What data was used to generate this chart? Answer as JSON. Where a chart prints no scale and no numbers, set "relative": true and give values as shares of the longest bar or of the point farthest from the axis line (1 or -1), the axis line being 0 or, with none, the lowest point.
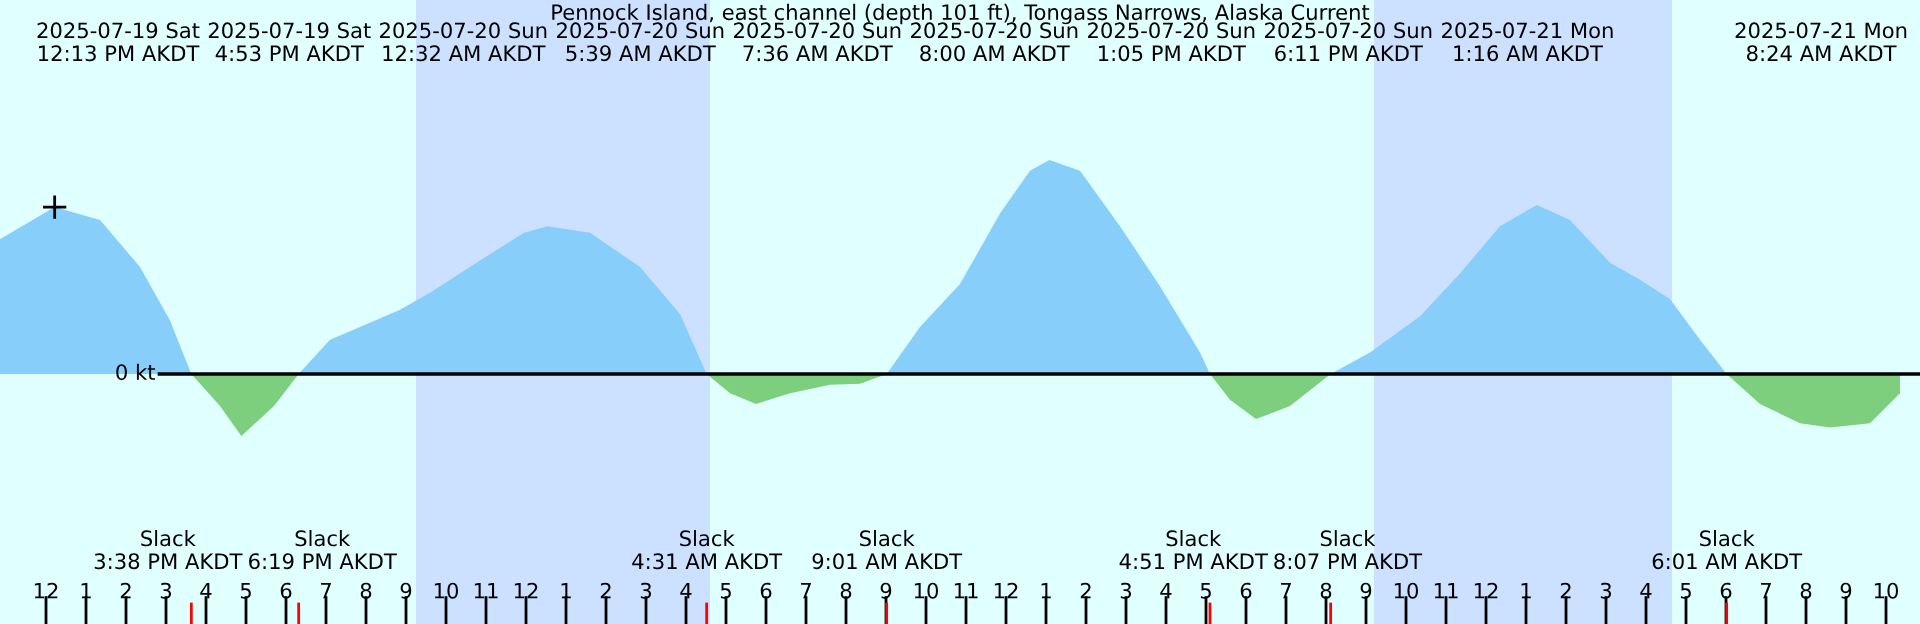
{
  "chart_data": {
    "type": "area",
    "title": "Pennock Island, east channel (depth 101 ft), Tongass Narrows, Alaska Current",
    "relative": true,
    "xlim": [
      "2025-07-19T10:51",
      "2025-07-21T10:51"
    ],
    "xticks": [
      {
        "value": "2025-07-19T12:00",
        "label": "12"
      },
      {
        "value": "2025-07-19T13:00",
        "label": "1"
      },
      {
        "value": "2025-07-19T14:00",
        "label": "2"
      },
      {
        "value": "2025-07-19T15:00",
        "label": "3"
      },
      {
        "value": "2025-07-19T16:00",
        "label": "4"
      },
      {
        "value": "2025-07-19T17:00",
        "label": "5"
      },
      {
        "value": "2025-07-19T18:00",
        "label": "6"
      },
      {
        "value": "2025-07-19T19:00",
        "label": "7"
      },
      {
        "value": "2025-07-19T20:00",
        "label": "8"
      },
      {
        "value": "2025-07-19T21:00",
        "label": "9"
      },
      {
        "value": "2025-07-19T22:00",
        "label": "10"
      },
      {
        "value": "2025-07-19T23:00",
        "label": "11"
      },
      {
        "value": "2025-07-20T00:00",
        "label": "12"
      },
      {
        "value": "2025-07-20T01:00",
        "label": "1"
      },
      {
        "value": "2025-07-20T02:00",
        "label": "2"
      },
      {
        "value": "2025-07-20T03:00",
        "label": "3"
      },
      {
        "value": "2025-07-20T04:00",
        "label": "4"
      },
      {
        "value": "2025-07-20T05:00",
        "label": "5"
      },
      {
        "value": "2025-07-20T06:00",
        "label": "6"
      },
      {
        "value": "2025-07-20T07:00",
        "label": "7"
      },
      {
        "value": "2025-07-20T08:00",
        "label": "8"
      },
      {
        "value": "2025-07-20T09:00",
        "label": "9"
      },
      {
        "value": "2025-07-20T10:00",
        "label": "10"
      },
      {
        "value": "2025-07-20T11:00",
        "label": "11"
      },
      {
        "value": "2025-07-20T12:00",
        "label": "12"
      },
      {
        "value": "2025-07-20T13:00",
        "label": "1"
      },
      {
        "value": "2025-07-20T14:00",
        "label": "2"
      },
      {
        "value": "2025-07-20T15:00",
        "label": "3"
      },
      {
        "value": "2025-07-20T16:00",
        "label": "4"
      },
      {
        "value": "2025-07-20T17:00",
        "label": "5"
      },
      {
        "value": "2025-07-20T18:00",
        "label": "6"
      },
      {
        "value": "2025-07-20T19:00",
        "label": "7"
      },
      {
        "value": "2025-07-20T20:00",
        "label": "8"
      },
      {
        "value": "2025-07-20T21:00",
        "label": "9"
      },
      {
        "value": "2025-07-20T22:00",
        "label": "10"
      },
      {
        "value": "2025-07-20T23:00",
        "label": "11"
      },
      {
        "value": "2025-07-21T00:00",
        "label": "12"
      },
      {
        "value": "2025-07-21T01:00",
        "label": "1"
      },
      {
        "value": "2025-07-21T02:00",
        "label": "2"
      },
      {
        "value": "2025-07-21T03:00",
        "label": "3"
      },
      {
        "value": "2025-07-21T04:00",
        "label": "4"
      },
      {
        "value": "2025-07-21T05:00",
        "label": "5"
      },
      {
        "value": "2025-07-21T06:00",
        "label": "6"
      },
      {
        "value": "2025-07-21T07:00",
        "label": "7"
      },
      {
        "value": "2025-07-21T08:00",
        "label": "8"
      },
      {
        "value": "2025-07-21T09:00",
        "label": "9"
      },
      {
        "value": "2025-07-21T10:00",
        "label": "10"
      }
    ],
    "x": [
      "2025-07-19T10:51",
      "2025-07-19T12:13",
      "2025-07-19T13:21",
      "2025-07-19T14:21",
      "2025-07-19T15:06",
      "2025-07-19T15:38",
      "2025-07-19T16:21",
      "2025-07-19T16:53",
      "2025-07-19T17:42",
      "2025-07-19T18:19",
      "2025-07-19T19:06",
      "2025-07-19T19:51",
      "2025-07-19T20:51",
      "2025-07-19T21:36",
      "2025-07-19T22:51",
      "2025-07-19T23:57",
      "2025-07-20T00:32",
      "2025-07-20T01:36",
      "2025-07-20T02:51",
      "2025-07-20T03:51",
      "2025-07-20T04:31",
      "2025-07-20T05:06",
      "2025-07-20T05:45",
      "2025-07-20T06:36",
      "2025-07-20T07:36",
      "2025-07-20T08:21",
      "2025-07-20T09:01",
      "2025-07-20T09:51",
      "2025-07-20T10:51",
      "2025-07-20T11:51",
      "2025-07-20T12:36",
      "2025-07-20T13:05",
      "2025-07-20T13:51",
      "2025-07-20T14:51",
      "2025-07-20T15:51",
      "2025-07-20T16:51",
      "2025-07-20T17:06",
      "2025-07-20T17:36",
      "2025-07-20T18:15",
      "2025-07-20T19:06",
      "2025-07-20T20:07",
      "2025-07-20T21:06",
      "2025-07-20T22:21",
      "2025-07-20T23:21",
      "2025-07-21T00:21",
      "2025-07-21T01:16",
      "2025-07-21T02:06",
      "2025-07-21T03:06",
      "2025-07-21T03:51",
      "2025-07-21T04:36",
      "2025-07-21T05:21",
      "2025-07-21T06:01",
      "2025-07-21T06:51",
      "2025-07-21T07:51",
      "2025-07-21T08:36",
      "2025-07-21T09:36",
      "2025-07-21T10:21"
    ],
    "series": [
      {
        "color": "#87cefa",
        "values": [
          0.63,
          0.78,
          0.72,
          0.5,
          0.25,
          0,
          null,
          null,
          null,
          0,
          0.16,
          0.22,
          0.3,
          0.38,
          0.53,
          0.66,
          0.69,
          0.66,
          0.5,
          0.28,
          0,
          null,
          null,
          null,
          null,
          null,
          0,
          0.22,
          0.42,
          0.75,
          0.95,
          1,
          0.95,
          0.69,
          0.41,
          0.1,
          0,
          null,
          null,
          null,
          0,
          0.1,
          0.27,
          0.47,
          0.69,
          0.79,
          0.72,
          0.52,
          0.44,
          0.35,
          0.16,
          0,
          null,
          null,
          null,
          null,
          null
        ]
      },
      {
        "color": "#7dcf7d",
        "values": [
          null,
          null,
          null,
          null,
          null,
          0,
          -0.15,
          -0.29,
          -0.15,
          0,
          null,
          null,
          null,
          null,
          null,
          null,
          null,
          null,
          null,
          null,
          0,
          -0.09,
          -0.14,
          -0.09,
          -0.05,
          -0.045,
          0,
          null,
          null,
          null,
          null,
          null,
          null,
          null,
          null,
          null,
          0,
          -0.12,
          -0.21,
          -0.15,
          0,
          null,
          null,
          null,
          null,
          null,
          null,
          null,
          null,
          null,
          null,
          0,
          -0.14,
          -0.23,
          -0.25,
          -0.23,
          -0.09
        ]
      },
      {
        "type": "scatter",
        "marker": "cross",
        "color": "#000000",
        "x": [
          "2025-07-19T12:13"
        ],
        "values": [
          0.78
        ]
      }
    ],
    "bands": [
      {
        "axis": "x",
        "from": "2025-07-19T21:15",
        "to": "2025-07-20T04:36",
        "color": "#cce0ff"
      },
      {
        "axis": "x",
        "from": "2025-07-20T21:12",
        "to": "2025-07-21T04:39",
        "color": "#cce0ff"
      }
    ],
    "ref_lines": [
      {
        "axis": "y",
        "value": 0,
        "label": "0 kt",
        "color": "#000000"
      }
    ],
    "annotations": [
      "2025-07-19 Sat\n12:13 PM AKDT",
      "2025-07-19 Sat\n4:53 PM AKDT",
      "2025-07-20 Sun\n12:32 AM AKDT",
      "2025-07-20 Sun\n5:39 AM AKDT",
      "2025-07-20 Sun\n7:36 AM AKDT",
      "2025-07-20 Sun\n8:00 AM AKDT",
      "2025-07-20 Sun\n1:05 PM AKDT",
      "2025-07-20 Sun\n6:11 PM AKDT",
      "2025-07-21 Mon\n1:16 AM AKDT",
      "2025-07-21 Mon\n8:24 AM AKDT",
      "Slack\n3:38 PM AKDT",
      "Slack\n6:19 PM AKDT",
      "Slack\n4:31 AM AKDT",
      "Slack\n9:01 AM AKDT",
      "Slack\n4:51 PM AKDT",
      "Slack\n8:07 PM AKDT",
      "Slack\n6:01 AM AKDT"
    ]
  }
}
